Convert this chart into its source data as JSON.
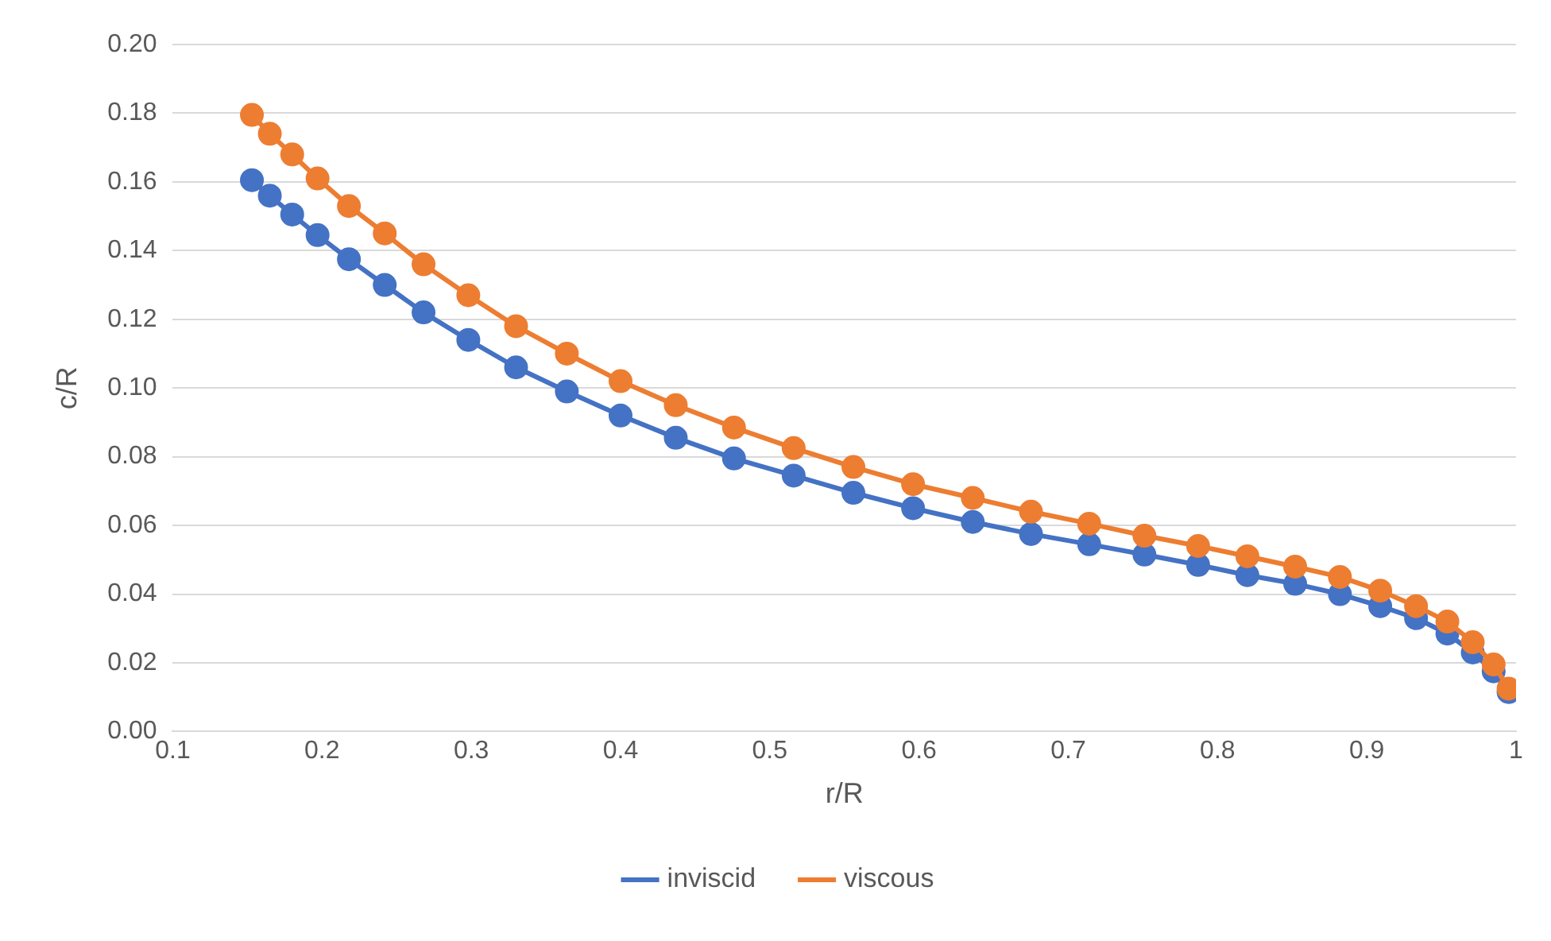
{
  "chart_data": {
    "type": "line",
    "xlabel": "r/R",
    "ylabel": "c/R",
    "x": [
      0.153,
      0.165,
      0.18,
      0.197,
      0.218,
      0.242,
      0.268,
      0.298,
      0.33,
      0.364,
      0.4,
      0.437,
      0.476,
      0.516,
      0.556,
      0.596,
      0.636,
      0.675,
      0.714,
      0.751,
      0.787,
      0.82,
      0.852,
      0.882,
      0.909,
      0.933,
      0.954,
      0.971,
      0.985,
      0.995
    ],
    "series": [
      {
        "name": "inviscid",
        "color": "#4472c4",
        "values": [
          0.1605,
          0.156,
          0.1505,
          0.1445,
          0.1375,
          0.13,
          0.122,
          0.114,
          0.106,
          0.099,
          0.092,
          0.0855,
          0.0795,
          0.0745,
          0.0695,
          0.065,
          0.061,
          0.0575,
          0.0545,
          0.0515,
          0.0485,
          0.0455,
          0.043,
          0.04,
          0.0365,
          0.033,
          0.0285,
          0.023,
          0.0175,
          0.0115
        ]
      },
      {
        "name": "viscous",
        "color": "#ed7d31",
        "values": [
          0.1795,
          0.174,
          0.168,
          0.161,
          0.153,
          0.145,
          0.136,
          0.127,
          0.118,
          0.11,
          0.102,
          0.095,
          0.0885,
          0.0825,
          0.077,
          0.072,
          0.068,
          0.064,
          0.0605,
          0.057,
          0.054,
          0.051,
          0.048,
          0.045,
          0.041,
          0.0365,
          0.032,
          0.026,
          0.0195,
          0.0125
        ]
      }
    ],
    "xlim": [
      0.1,
      1
    ],
    "xticks": [
      0.1,
      0.2,
      0.3,
      0.4,
      0.5,
      0.6,
      0.7,
      0.8,
      0.9,
      1
    ],
    "ylim": [
      0,
      0.2
    ],
    "yticks": [
      {
        "value": 0,
        "label": "0.00"
      },
      {
        "value": 0.02,
        "label": "0.02"
      },
      {
        "value": 0.04,
        "label": "0.04"
      },
      {
        "value": 0.06,
        "label": "0.06"
      },
      {
        "value": 0.08,
        "label": "0.08"
      },
      {
        "value": 0.1,
        "label": "0.10"
      },
      {
        "value": 0.12,
        "label": "0.12"
      },
      {
        "value": 0.14,
        "label": "0.14"
      },
      {
        "value": 0.16,
        "label": "0.16"
      },
      {
        "value": 0.18,
        "label": "0.18"
      },
      {
        "value": 0.2,
        "label": "0.20"
      }
    ],
    "grid": "y",
    "legend": "bottom",
    "marker": "circle",
    "line_style": "solid"
  }
}
